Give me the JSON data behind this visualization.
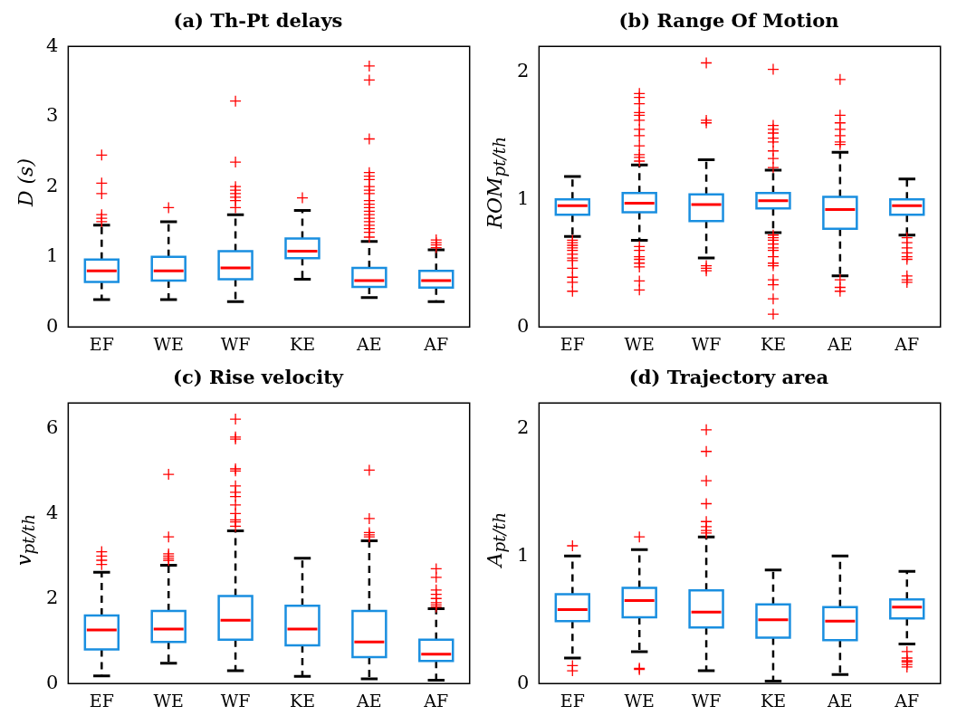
{
  "chart_data": [
    {
      "type": "box",
      "title": "(a) Th-Pt delays",
      "ylabel": "D (s)",
      "categories": [
        "EF",
        "WE",
        "WF",
        "KE",
        "AE",
        "AF"
      ],
      "ylim": [
        0,
        4
      ],
      "yticks": [
        0,
        1,
        2,
        3,
        4
      ],
      "series": [
        {
          "color": "#1a8fe0",
          "boxes": [
            {
              "low": 0.39,
              "q1": 0.64,
              "median": 0.8,
              "q3": 0.96,
              "high": 1.45,
              "outliers": [
                1.5,
                1.55,
                1.6,
                1.9,
                2.05,
                2.45
              ]
            },
            {
              "low": 0.39,
              "q1": 0.66,
              "median": 0.8,
              "q3": 1.0,
              "high": 1.5,
              "outliers": [
                1.7
              ]
            },
            {
              "low": 0.36,
              "q1": 0.68,
              "median": 0.84,
              "q3": 1.08,
              "high": 1.6,
              "outliers": [
                1.7,
                1.8,
                1.85,
                1.9,
                1.95,
                2.0,
                2.35,
                3.22
              ]
            },
            {
              "low": 0.68,
              "q1": 0.98,
              "median": 1.08,
              "q3": 1.26,
              "high": 1.66,
              "outliers": [
                1.84
              ]
            },
            {
              "low": 0.42,
              "q1": 0.57,
              "median": 0.66,
              "q3": 0.84,
              "high": 1.22,
              "outliers": [
                1.28,
                1.35,
                1.4,
                1.45,
                1.5,
                1.55,
                1.6,
                1.65,
                1.7,
                1.75,
                1.8,
                1.9,
                1.95,
                2.0,
                2.1,
                2.15,
                2.2,
                2.68,
                3.52,
                3.72
              ]
            },
            {
              "low": 0.36,
              "q1": 0.56,
              "median": 0.66,
              "q3": 0.8,
              "high": 1.1,
              "outliers": [
                1.13,
                1.17,
                1.2,
                1.24
              ]
            }
          ]
        }
      ]
    },
    {
      "type": "box",
      "title": "(b) Range Of Motion",
      "ylabel": "ROM$_{pt/th}$",
      "categories": [
        "EF",
        "WE",
        "WF",
        "KE",
        "AE",
        "AF"
      ],
      "ylim": [
        0,
        2.2
      ],
      "yticks": [
        0,
        1,
        2
      ],
      "series": [
        {
          "color": "#1a8fe0",
          "boxes": [
            {
              "low": 0.71,
              "q1": 0.88,
              "median": 0.95,
              "q3": 1.0,
              "high": 1.18,
              "outliers": [
                0.68,
                0.66,
                0.64,
                0.62,
                0.6,
                0.57,
                0.54,
                0.52,
                0.46,
                0.39,
                0.35,
                0.28
              ]
            },
            {
              "low": 0.68,
              "q1": 0.9,
              "median": 0.97,
              "q3": 1.05,
              "high": 1.27,
              "outliers": [
                1.3,
                1.33,
                1.35,
                1.42,
                1.5,
                1.55,
                1.62,
                1.66,
                1.68,
                1.75,
                1.8,
                1.83,
                0.63,
                0.6,
                0.55,
                0.53,
                0.5,
                0.47,
                0.36,
                0.29
              ]
            },
            {
              "low": 0.54,
              "q1": 0.83,
              "median": 0.96,
              "q3": 1.04,
              "high": 1.31,
              "outliers": [
                0.48,
                0.46,
                0.44,
                1.6,
                1.62,
                2.07
              ]
            },
            {
              "low": 0.74,
              "q1": 0.93,
              "median": 0.99,
              "q3": 1.05,
              "high": 1.23,
              "outliers": [
                1.25,
                1.32,
                1.38,
                1.45,
                1.48,
                1.52,
                1.55,
                1.58,
                2.02,
                0.72,
                0.7,
                0.68,
                0.65,
                0.62,
                0.6,
                0.55,
                0.5,
                0.48,
                0.37,
                0.33,
                0.22,
                0.1
              ]
            },
            {
              "low": 0.4,
              "q1": 0.77,
              "median": 0.92,
              "q3": 1.02,
              "high": 1.37,
              "outliers": [
                0.37,
                0.31,
                0.28,
                1.43,
                1.45,
                1.5,
                1.55,
                1.6,
                1.66,
                1.94
              ]
            },
            {
              "low": 0.72,
              "q1": 0.88,
              "median": 0.95,
              "q3": 1.0,
              "high": 1.16,
              "outliers": [
                0.7,
                0.66,
                0.62,
                0.58,
                0.55,
                0.53,
                0.4,
                0.37,
                0.35
              ]
            }
          ]
        }
      ]
    },
    {
      "type": "box",
      "title": "(c) Rise velocity",
      "ylabel": "v$_{pt/th}$",
      "categories": [
        "EF",
        "WE",
        "WF",
        "KE",
        "AE",
        "AF"
      ],
      "ylim": [
        0,
        6.6
      ],
      "yticks": [
        0,
        2,
        4,
        6
      ],
      "series": [
        {
          "color": "#1a8fe0",
          "boxes": [
            {
              "low": 0.18,
              "q1": 0.8,
              "median": 1.26,
              "q3": 1.6,
              "high": 2.62,
              "outliers": [
                2.8,
                2.9,
                3.0,
                3.1
              ]
            },
            {
              "low": 0.48,
              "q1": 0.98,
              "median": 1.28,
              "q3": 1.71,
              "high": 2.78,
              "outliers": [
                2.9,
                2.95,
                3.0,
                3.05,
                3.45,
                4.92
              ]
            },
            {
              "low": 0.3,
              "q1": 1.03,
              "median": 1.49,
              "q3": 2.06,
              "high": 3.59,
              "outliers": [
                3.7,
                3.8,
                3.85,
                4.0,
                4.2,
                4.4,
                4.5,
                4.65,
                5.0,
                5.05,
                5.75,
                5.8,
                6.22
              ]
            },
            {
              "low": 0.17,
              "q1": 0.9,
              "median": 1.28,
              "q3": 1.83,
              "high": 2.95
            },
            {
              "low": 0.11,
              "q1": 0.62,
              "median": 0.98,
              "q3": 1.71,
              "high": 3.36,
              "outliers": [
                3.45,
                3.5,
                3.55,
                3.88,
                5.02
              ]
            },
            {
              "low": 0.08,
              "q1": 0.53,
              "median": 0.69,
              "q3": 1.03,
              "high": 1.76,
              "outliers": [
                1.8,
                1.85,
                1.9,
                2.0,
                2.1,
                2.2,
                2.5,
                2.7
              ]
            }
          ]
        }
      ]
    },
    {
      "type": "box",
      "title": "(d) Trajectory area",
      "ylabel": "A$_{pt/th}$",
      "categories": [
        "EF",
        "WE",
        "WF",
        "KE",
        "AE",
        "AF"
      ],
      "ylim": [
        0,
        2.2
      ],
      "yticks": [
        0,
        1,
        2
      ],
      "series": [
        {
          "color": "#1a8fe0",
          "boxes": [
            {
              "low": 0.2,
              "q1": 0.49,
              "median": 0.58,
              "q3": 0.7,
              "high": 1.0,
              "outliers": [
                0.1,
                0.14,
                1.08
              ]
            },
            {
              "low": 0.25,
              "q1": 0.52,
              "median": 0.65,
              "q3": 0.75,
              "high": 1.05,
              "outliers": [
                0.11,
                0.12,
                1.15
              ]
            },
            {
              "low": 0.1,
              "q1": 0.44,
              "median": 0.56,
              "q3": 0.73,
              "high": 1.15,
              "outliers": [
                1.18,
                1.2,
                1.23,
                1.27,
                1.41,
                1.59,
                1.82,
                1.99
              ]
            },
            {
              "low": 0.02,
              "q1": 0.36,
              "median": 0.5,
              "q3": 0.62,
              "high": 0.89
            },
            {
              "low": 0.07,
              "q1": 0.34,
              "median": 0.49,
              "q3": 0.6,
              "high": 1.0
            },
            {
              "low": 0.31,
              "q1": 0.51,
              "median": 0.6,
              "q3": 0.66,
              "high": 0.88,
              "outliers": [
                0.25,
                0.2,
                0.18,
                0.17,
                0.15,
                0.13
              ]
            }
          ]
        }
      ]
    }
  ]
}
